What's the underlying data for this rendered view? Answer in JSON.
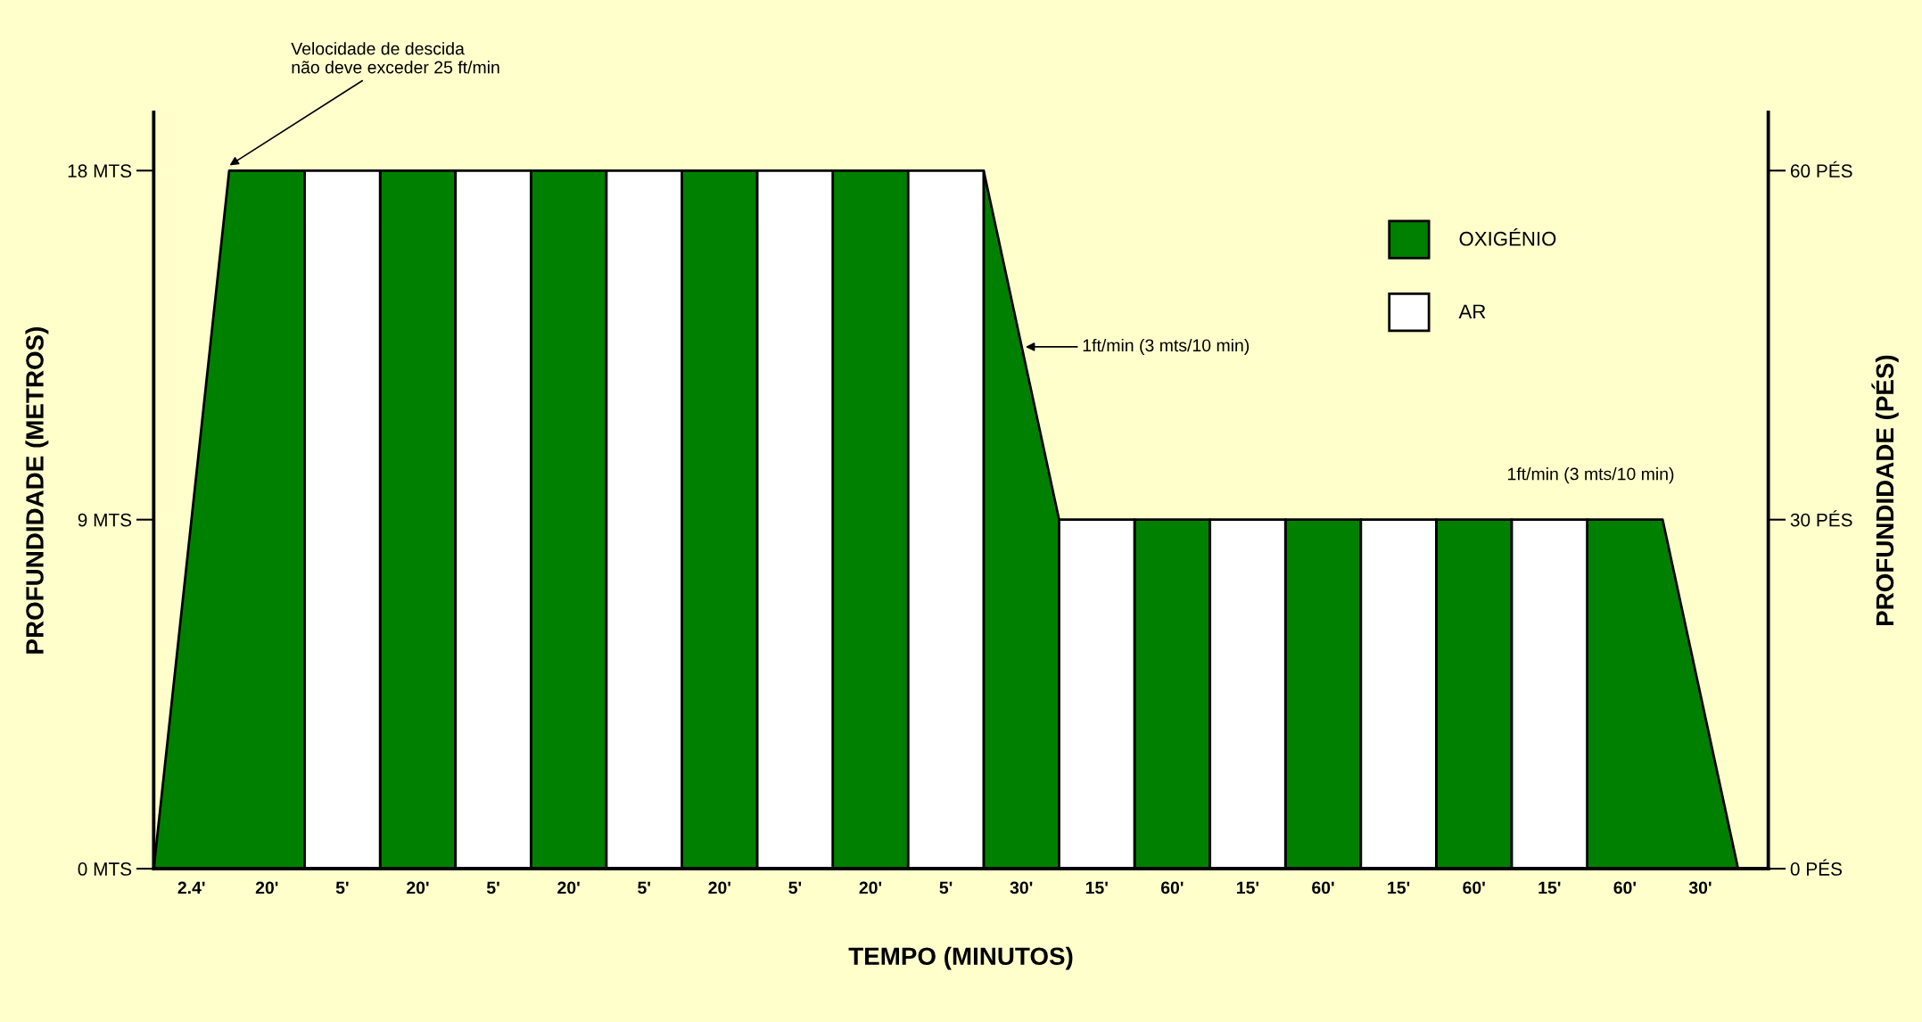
{
  "chart_data": {
    "type": "area",
    "xlabel": "TEMPO (MINUTOS)",
    "ylabel": "PROFUNDIDADE (METROS)",
    "y2label": "PROFUNDIDADE (PÉS)",
    "categories": [
      null,
      "2.4'",
      null,
      "20'",
      null,
      "5'",
      null,
      "20'",
      null,
      "5'",
      null,
      "20'",
      null,
      "5'",
      null,
      "20'",
      null,
      "5'",
      null,
      "20'",
      null,
      "5'",
      null,
      "30'",
      null,
      "15'",
      null,
      "60'",
      null,
      "15'",
      null,
      "60'",
      null,
      "15'",
      null,
      "60'",
      null,
      "15'",
      null,
      "60'",
      null,
      "30'",
      null
    ],
    "series": [
      {
        "name": "OXIGÉNIO",
        "color": "#008000",
        "values": [
          0,
          9,
          18,
          18,
          18,
          null,
          18,
          18,
          18,
          null,
          18,
          18,
          18,
          null,
          18,
          18,
          18,
          null,
          18,
          18,
          18,
          null,
          18,
          13.5,
          9,
          null,
          9,
          9,
          9,
          null,
          9,
          9,
          9,
          null,
          9,
          9,
          9,
          null,
          9,
          9,
          9,
          4.5,
          0
        ]
      },
      {
        "name": "AR",
        "color": "#ffffff",
        "values": [
          null,
          null,
          null,
          null,
          18,
          18,
          18,
          null,
          18,
          18,
          18,
          null,
          18,
          18,
          18,
          null,
          18,
          18,
          18,
          null,
          18,
          18,
          18,
          null,
          9,
          9,
          9,
          null,
          9,
          9,
          9,
          null,
          9,
          9,
          9,
          null,
          9,
          9,
          9,
          null,
          null,
          null,
          null
        ]
      }
    ],
    "ylim": [
      0,
      19.5
    ],
    "yticks": [
      {
        "value": 0,
        "label": "0 MTS"
      },
      {
        "value": 9,
        "label": "9 MTS"
      },
      {
        "value": 18,
        "label": "18 MTS"
      }
    ],
    "y2lim": [
      0,
      65
    ],
    "y2ticks": [
      {
        "value": 0,
        "label": "0 PÉS"
      },
      {
        "value": 30,
        "label": "30 PÉS"
      },
      {
        "value": 60,
        "label": "60 PÉS"
      }
    ],
    "annotations": [
      "Velocidade de descida\nnão deve exceder 25 ft/min",
      "1ft/min (3 mts/10 min)",
      "1ft/min (3 mts/10 min)"
    ],
    "legend": "top right",
    "grid": false
  }
}
